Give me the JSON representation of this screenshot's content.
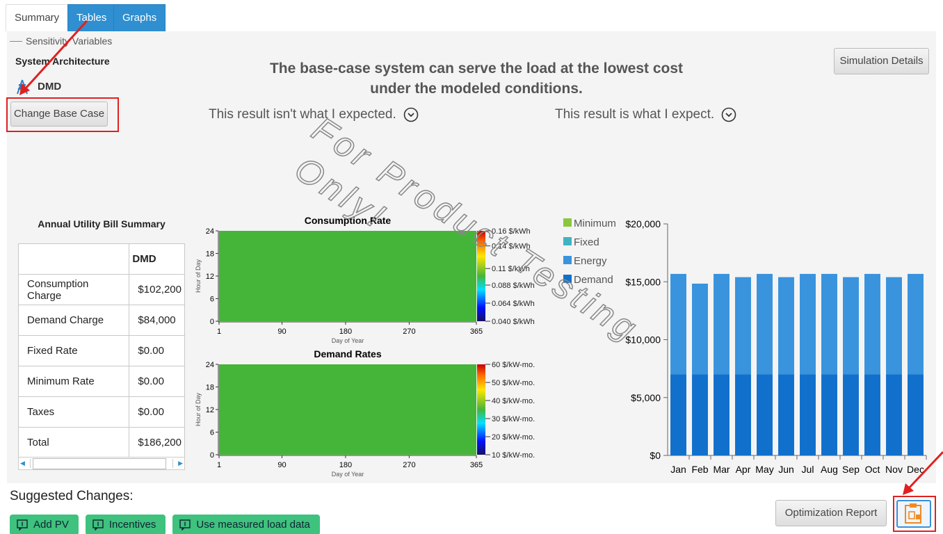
{
  "tabs": [
    "Summary",
    "Tables",
    "Graphs"
  ],
  "sensitivity_label": "Sensitivity Variables",
  "system_architecture": {
    "title": "System Architecture",
    "item": "DMD",
    "button": "Change Base Case"
  },
  "simulation_details": "Simulation Details",
  "headline": [
    "The base-case system can serve the load at the lowest cost",
    "under the modeled conditions."
  ],
  "feedback": [
    "This result isn't what I expected.",
    "This result is what I expect."
  ],
  "watermark": [
    "For Product Testing",
    "Only!"
  ],
  "bill_summary": {
    "title": "Annual Utility Bill Summary",
    "header": "DMD",
    "rows": [
      [
        "Consumption Charge",
        "$102,200"
      ],
      [
        "Demand Charge",
        "$84,000"
      ],
      [
        "Fixed Rate",
        "$0.00"
      ],
      [
        "Minimum Rate",
        "$0.00"
      ],
      [
        "Taxes",
        "$0.00"
      ],
      [
        "Total",
        "$186,200"
      ]
    ]
  },
  "chart_data": [
    {
      "type": "heatmap",
      "title": "Consumption Rate",
      "xlabel": "Day of Year",
      "ylabel": "Hour of Day",
      "xlim": [
        1,
        365
      ],
      "xticks": [
        1,
        90,
        180,
        270,
        365
      ],
      "ylim": [
        0,
        24
      ],
      "yticks": [
        0,
        6,
        12,
        18,
        24
      ],
      "value": 0.09,
      "color": "#45b53a",
      "clim": [
        0.04,
        0.16
      ],
      "cticks": [
        {
          "value": 0.04,
          "label": "0.040 $/kWh"
        },
        {
          "value": 0.064,
          "label": "0.064 $/kWh"
        },
        {
          "value": 0.088,
          "label": "0.088 $/kWh"
        },
        {
          "value": 0.11,
          "label": "0.11 $/kWh"
        },
        {
          "value": 0.14,
          "label": "0.14 $/kWh"
        },
        {
          "value": 0.16,
          "label": "0.16 $/kWh"
        }
      ]
    },
    {
      "type": "heatmap",
      "title": "Demand Rates",
      "xlabel": "Day of Year",
      "ylabel": "Hour of Day",
      "xlim": [
        1,
        365
      ],
      "xticks": [
        1,
        90,
        180,
        270,
        365
      ],
      "ylim": [
        0,
        24
      ],
      "yticks": [
        0,
        6,
        12,
        18,
        24
      ],
      "value": 35,
      "color": "#45b53a",
      "clim": [
        10,
        60
      ],
      "cticks": [
        {
          "value": 10,
          "label": "10 $/kW-mo."
        },
        {
          "value": 20,
          "label": "20 $/kW-mo."
        },
        {
          "value": 30,
          "label": "30 $/kW-mo."
        },
        {
          "value": 40,
          "label": "40 $/kW-mo."
        },
        {
          "value": 50,
          "label": "50 $/kW-mo."
        },
        {
          "value": 60,
          "label": "60 $/kW-mo."
        }
      ]
    },
    {
      "type": "stacked_bar",
      "categories": [
        "Jan",
        "Feb",
        "Mar",
        "Apr",
        "May",
        "Jun",
        "Jul",
        "Aug",
        "Sep",
        "Oct",
        "Nov",
        "Dec"
      ],
      "series": [
        {
          "name": "Minimum",
          "color": "#8cc63f",
          "values": [
            0,
            0,
            0,
            0,
            0,
            0,
            0,
            0,
            0,
            0,
            0,
            0
          ]
        },
        {
          "name": "Fixed",
          "color": "#3fb4c0",
          "values": [
            0,
            0,
            0,
            0,
            0,
            0,
            0,
            0,
            0,
            0,
            0,
            0
          ]
        },
        {
          "name": "Energy",
          "color": "#3993dd",
          "values": [
            8680,
            7840,
            8680,
            8400,
            8680,
            8400,
            8680,
            8680,
            8400,
            8680,
            8400,
            8680
          ]
        },
        {
          "name": "Demand",
          "color": "#1170cc",
          "values": [
            7000,
            7000,
            7000,
            7000,
            7000,
            7000,
            7000,
            7000,
            7000,
            7000,
            7000,
            7000
          ]
        }
      ],
      "ylim": [
        0,
        20000
      ],
      "yticks": [
        {
          "value": 0,
          "label": "$0"
        },
        {
          "value": 5000,
          "label": "$5,000"
        },
        {
          "value": 10000,
          "label": "$10,000"
        },
        {
          "value": 15000,
          "label": "$15,000"
        },
        {
          "value": 20000,
          "label": "$20,000"
        }
      ]
    }
  ],
  "suggested": {
    "title": "Suggested Changes:",
    "buttons": [
      "Add PV",
      "Incentives",
      "Use measured load data"
    ]
  },
  "optimization_report": "Optimization Report"
}
